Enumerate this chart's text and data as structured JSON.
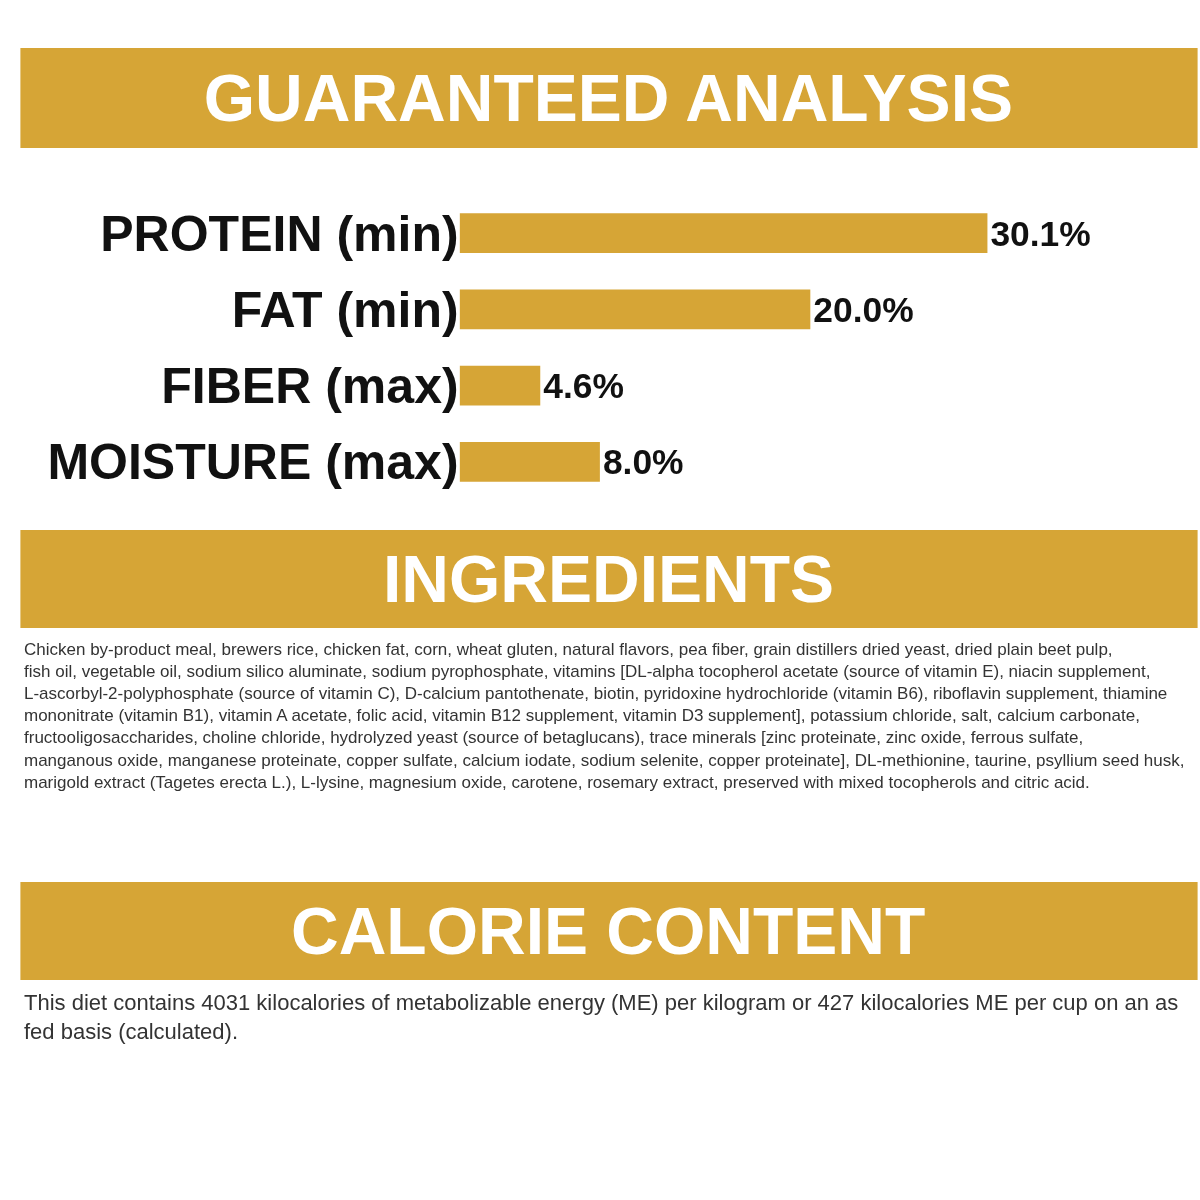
{
  "chart_data": {
    "type": "bar",
    "orientation": "horizontal",
    "title": "GUARANTEED ANALYSIS",
    "categories": [
      "PROTEIN (min)",
      "FAT (min)",
      "FIBER (max)",
      "MOISTURE (max)"
    ],
    "values": [
      30.1,
      20.0,
      4.6,
      8.0
    ],
    "value_labels": [
      "30.1%",
      "20.0%",
      "4.6%",
      "8.0%"
    ],
    "color": "#d6a536",
    "legend": false,
    "annotations": [
      "INGREDIENTS",
      "Chicken by-product meal, brewers rice, chicken fat, corn, wheat gluten, natural flavors, pea fiber, grain distillers dried yeast, dried plain beet pulp, fish oil, vegetable oil, sodium silico aluminate, sodium pyrophosphate, vitamins [DL-alpha tocopherol acetate (source of vitamin E), niacin supplement, L-ascorbyl-2-polyphosphate (source of vitamin C), D-calcium pantothenate, biotin, pyridoxine hydrochloride (vitamin B6), riboflavin supplement, thiamine mononitrate (vitamin B1), vitamin A acetate, folic acid, vitamin B12 supplement, vitamin D3 supplement], potassium chloride, salt, calcium carbonate, fructooligosaccharides, choline chloride, hydrolyzed yeast (source of betaglucans), trace minerals [zinc proteinate, zinc oxide, ferrous sulfate, manganous oxide, manganese proteinate, copper sulfate, calcium iodate, sodium selenite, copper proteinate], DL-methionine, taurine, psyllium seed husk, marigold extract (Tagetes erecta L.), L-lysine, magnesium oxide, carotene, rosemary extract, preserved with mixed tocopherols and citric acid.",
      "CALORIE CONTENT",
      "This diet contains 4031 kilocalories of metabolizable energy (ME) per kilogram or 427 kilocalories ME per cup on an as fed basis (calculated)."
    ]
  }
}
